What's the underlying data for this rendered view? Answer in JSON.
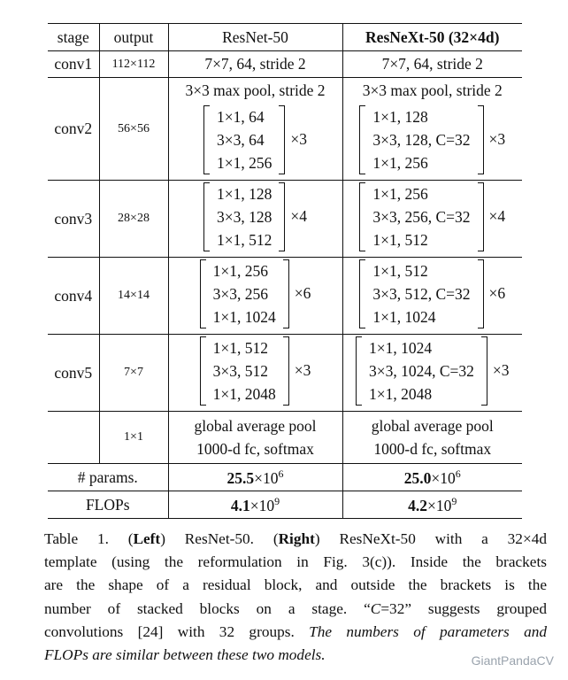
{
  "table": {
    "headers": {
      "stage": "stage",
      "output": "output",
      "left": "ResNet-50",
      "right": "ResNeXt-50 (32×4d)"
    },
    "conv1": {
      "stage": "conv1",
      "output": "112×112",
      "left": "7×7, 64, stride 2",
      "right": "7×7, 64, stride 2"
    },
    "pool": {
      "left": "3×3 max pool, stride 2",
      "right": "3×3 max pool, stride 2"
    },
    "conv2": {
      "stage": "conv2",
      "output": "56×56",
      "left": [
        "1×1, 64",
        "3×3, 64",
        "1×1, 256"
      ],
      "left_mult": "×3",
      "right": [
        "1×1, 128",
        "3×3, 128, C=32",
        "1×1, 256"
      ],
      "right_mult": "×3"
    },
    "conv3": {
      "stage": "conv3",
      "output": "28×28",
      "left": [
        "1×1, 128",
        "3×3, 128",
        "1×1, 512"
      ],
      "left_mult": "×4",
      "right": [
        "1×1, 256",
        "3×3, 256, C=32",
        "1×1, 512"
      ],
      "right_mult": "×4"
    },
    "conv4": {
      "stage": "conv4",
      "output": "14×14",
      "left": [
        "1×1, 256",
        "3×3, 256",
        "1×1, 1024"
      ],
      "left_mult": "×6",
      "right": [
        "1×1, 512",
        "3×3, 512, C=32",
        "1×1, 1024"
      ],
      "right_mult": "×6"
    },
    "conv5": {
      "stage": "conv5",
      "output": "7×7",
      "left": [
        "1×1, 512",
        "3×3, 512",
        "1×1, 2048"
      ],
      "left_mult": "×3",
      "right": [
        "1×1, 1024",
        "3×3, 1024, C=32",
        "1×1, 2048"
      ],
      "right_mult": "×3"
    },
    "final": {
      "output": "1×1",
      "left": [
        "global average pool",
        "1000-d fc, softmax"
      ],
      "right": [
        "global average pool",
        "1000-d fc, softmax"
      ]
    },
    "params": {
      "label": "# params.",
      "left_base": "25.5",
      "left_rest": "×10",
      "left_exp": "6",
      "right_base": "25.0",
      "right_rest": "×10",
      "right_exp": "6"
    },
    "flops": {
      "label": "FLOPs",
      "left_base": "4.1",
      "left_rest": "×10",
      "left_exp": "9",
      "right_base": "4.2",
      "right_rest": "×10",
      "right_exp": "9"
    }
  },
  "caption": {
    "l1a": "Table 1. (",
    "l1b": "Left",
    "l1c": ") ResNet-50.  (",
    "l1d": "Right",
    "l1e": ") ResNeXt-50 with a 32×4d",
    "l2": "template (using the reformulation in Fig. 3(c)). Inside the brackets",
    "l3": "are the shape of a residual block, and outside the brackets is the",
    "l4a": "number of stacked blocks on a stage.  “",
    "l4b": "C",
    "l4c": "=32” suggests grouped",
    "l5a": "convolutions [24] with 32 groups. ",
    "l5b": "The numbers of parameters and",
    "l6": "FLOPs are similar between these two models."
  },
  "watermark": "GiantPandaCV"
}
